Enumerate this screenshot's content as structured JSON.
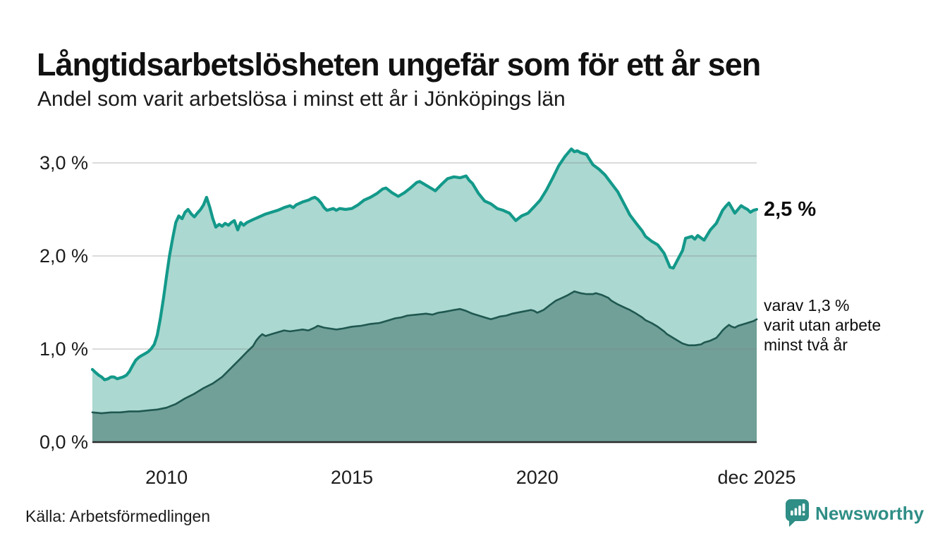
{
  "header": {
    "title": "Långtidsarbetslösheten ungefär som för ett år sen",
    "subtitle": "Andel som varit arbetslösa i minst ett år i Jönköpings län"
  },
  "chart_data": {
    "type": "area",
    "title": "Långtidsarbetslösheten ungefär som för ett år sen",
    "subtitle": "Andel som varit arbetslösa i minst ett år i Jönköpings län",
    "unit": "%",
    "grid": true,
    "legend_position": "end-labels-right",
    "x_axis": {
      "range": [
        2008.0,
        2025.92
      ],
      "ticks": [
        {
          "label": "2010",
          "x": 2010
        },
        {
          "label": "2015",
          "x": 2015
        },
        {
          "label": "2020",
          "x": 2020
        },
        {
          "label": "dec 2025",
          "x": 2025.92
        }
      ]
    },
    "y_axis": {
      "range": [
        0,
        3.2
      ],
      "ticks": [
        {
          "label": "0,0 %",
          "value": 0
        },
        {
          "label": "1,0 %",
          "value": 1
        },
        {
          "label": "2,0 %",
          "value": 2
        },
        {
          "label": "3,0 %",
          "value": 3
        }
      ]
    },
    "series": [
      {
        "name": "Andel arbetslösa minst ett år",
        "end_label": "2,5 %",
        "end_value": 2.5,
        "points": [
          [
            2008.0,
            0.78
          ],
          [
            2008.08,
            0.75
          ],
          [
            2008.17,
            0.72
          ],
          [
            2008.25,
            0.7
          ],
          [
            2008.33,
            0.67
          ],
          [
            2008.42,
            0.68
          ],
          [
            2008.5,
            0.7
          ],
          [
            2008.58,
            0.7
          ],
          [
            2008.67,
            0.68
          ],
          [
            2008.75,
            0.69
          ],
          [
            2008.83,
            0.7
          ],
          [
            2008.92,
            0.72
          ],
          [
            2009.0,
            0.76
          ],
          [
            2009.08,
            0.82
          ],
          [
            2009.17,
            0.88
          ],
          [
            2009.25,
            0.91
          ],
          [
            2009.33,
            0.93
          ],
          [
            2009.42,
            0.95
          ],
          [
            2009.5,
            0.97
          ],
          [
            2009.58,
            1.0
          ],
          [
            2009.67,
            1.05
          ],
          [
            2009.75,
            1.15
          ],
          [
            2009.83,
            1.32
          ],
          [
            2009.92,
            1.55
          ],
          [
            2010.0,
            1.78
          ],
          [
            2010.08,
            2.0
          ],
          [
            2010.17,
            2.2
          ],
          [
            2010.25,
            2.36
          ],
          [
            2010.33,
            2.43
          ],
          [
            2010.42,
            2.4
          ],
          [
            2010.5,
            2.47
          ],
          [
            2010.58,
            2.5
          ],
          [
            2010.67,
            2.45
          ],
          [
            2010.75,
            2.42
          ],
          [
            2010.83,
            2.46
          ],
          [
            2010.92,
            2.5
          ],
          [
            2011.0,
            2.55
          ],
          [
            2011.08,
            2.63
          ],
          [
            2011.17,
            2.52
          ],
          [
            2011.25,
            2.4
          ],
          [
            2011.33,
            2.31
          ],
          [
            2011.42,
            2.34
          ],
          [
            2011.5,
            2.32
          ],
          [
            2011.58,
            2.35
          ],
          [
            2011.67,
            2.33
          ],
          [
            2011.75,
            2.36
          ],
          [
            2011.83,
            2.38
          ],
          [
            2011.92,
            2.28
          ],
          [
            2012.0,
            2.36
          ],
          [
            2012.08,
            2.33
          ],
          [
            2012.17,
            2.36
          ],
          [
            2012.33,
            2.39
          ],
          [
            2012.5,
            2.42
          ],
          [
            2012.67,
            2.45
          ],
          [
            2012.83,
            2.47
          ],
          [
            2013.0,
            2.49
          ],
          [
            2013.17,
            2.52
          ],
          [
            2013.33,
            2.54
          ],
          [
            2013.42,
            2.52
          ],
          [
            2013.5,
            2.55
          ],
          [
            2013.67,
            2.58
          ],
          [
            2013.83,
            2.6
          ],
          [
            2013.92,
            2.62
          ],
          [
            2014.0,
            2.63
          ],
          [
            2014.08,
            2.61
          ],
          [
            2014.17,
            2.57
          ],
          [
            2014.25,
            2.52
          ],
          [
            2014.33,
            2.49
          ],
          [
            2014.5,
            2.51
          ],
          [
            2014.58,
            2.49
          ],
          [
            2014.67,
            2.51
          ],
          [
            2014.83,
            2.5
          ],
          [
            2015.0,
            2.51
          ],
          [
            2015.17,
            2.55
          ],
          [
            2015.33,
            2.6
          ],
          [
            2015.5,
            2.63
          ],
          [
            2015.67,
            2.67
          ],
          [
            2015.83,
            2.72
          ],
          [
            2015.92,
            2.73
          ],
          [
            2016.08,
            2.68
          ],
          [
            2016.25,
            2.64
          ],
          [
            2016.42,
            2.68
          ],
          [
            2016.58,
            2.73
          ],
          [
            2016.75,
            2.79
          ],
          [
            2016.83,
            2.8
          ],
          [
            2017.0,
            2.76
          ],
          [
            2017.17,
            2.72
          ],
          [
            2017.25,
            2.7
          ],
          [
            2017.42,
            2.77
          ],
          [
            2017.58,
            2.83
          ],
          [
            2017.75,
            2.85
          ],
          [
            2017.92,
            2.84
          ],
          [
            2018.08,
            2.86
          ],
          [
            2018.17,
            2.81
          ],
          [
            2018.25,
            2.78
          ],
          [
            2018.42,
            2.67
          ],
          [
            2018.58,
            2.59
          ],
          [
            2018.75,
            2.56
          ],
          [
            2018.92,
            2.51
          ],
          [
            2019.08,
            2.49
          ],
          [
            2019.25,
            2.46
          ],
          [
            2019.42,
            2.38
          ],
          [
            2019.58,
            2.43
          ],
          [
            2019.75,
            2.46
          ],
          [
            2019.92,
            2.53
          ],
          [
            2020.08,
            2.6
          ],
          [
            2020.25,
            2.71
          ],
          [
            2020.42,
            2.84
          ],
          [
            2020.58,
            2.97
          ],
          [
            2020.75,
            3.07
          ],
          [
            2020.92,
            3.15
          ],
          [
            2021.0,
            3.12
          ],
          [
            2021.08,
            3.13
          ],
          [
            2021.17,
            3.11
          ],
          [
            2021.33,
            3.09
          ],
          [
            2021.5,
            2.98
          ],
          [
            2021.67,
            2.93
          ],
          [
            2021.83,
            2.87
          ],
          [
            2022.0,
            2.78
          ],
          [
            2022.17,
            2.69
          ],
          [
            2022.33,
            2.57
          ],
          [
            2022.5,
            2.44
          ],
          [
            2022.67,
            2.35
          ],
          [
            2022.83,
            2.27
          ],
          [
            2022.92,
            2.21
          ],
          [
            2023.08,
            2.16
          ],
          [
            2023.25,
            2.12
          ],
          [
            2023.42,
            2.03
          ],
          [
            2023.58,
            1.88
          ],
          [
            2023.67,
            1.87
          ],
          [
            2023.75,
            1.93
          ],
          [
            2023.92,
            2.06
          ],
          [
            2024.0,
            2.19
          ],
          [
            2024.17,
            2.21
          ],
          [
            2024.25,
            2.18
          ],
          [
            2024.33,
            2.22
          ],
          [
            2024.5,
            2.17
          ],
          [
            2024.67,
            2.28
          ],
          [
            2024.83,
            2.35
          ],
          [
            2025.0,
            2.49
          ],
          [
            2025.08,
            2.53
          ],
          [
            2025.17,
            2.57
          ],
          [
            2025.33,
            2.46
          ],
          [
            2025.5,
            2.54
          ],
          [
            2025.58,
            2.52
          ],
          [
            2025.67,
            2.5
          ],
          [
            2025.75,
            2.47
          ],
          [
            2025.83,
            2.49
          ],
          [
            2025.92,
            2.5
          ]
        ]
      },
      {
        "name": "varav utan arbete minst två år",
        "end_label": "varav 1,3 %\nvarit utan arbete\nminst två år",
        "end_value": 1.3,
        "points": [
          [
            2008.0,
            0.32
          ],
          [
            2008.25,
            0.31
          ],
          [
            2008.5,
            0.32
          ],
          [
            2008.75,
            0.32
          ],
          [
            2009.0,
            0.33
          ],
          [
            2009.25,
            0.33
          ],
          [
            2009.5,
            0.34
          ],
          [
            2009.75,
            0.35
          ],
          [
            2010.0,
            0.37
          ],
          [
            2010.25,
            0.41
          ],
          [
            2010.5,
            0.47
          ],
          [
            2010.75,
            0.52
          ],
          [
            2011.0,
            0.58
          ],
          [
            2011.25,
            0.63
          ],
          [
            2011.5,
            0.7
          ],
          [
            2011.75,
            0.8
          ],
          [
            2012.0,
            0.9
          ],
          [
            2012.17,
            0.97
          ],
          [
            2012.33,
            1.03
          ],
          [
            2012.42,
            1.09
          ],
          [
            2012.5,
            1.13
          ],
          [
            2012.58,
            1.16
          ],
          [
            2012.67,
            1.14
          ],
          [
            2012.83,
            1.16
          ],
          [
            2013.0,
            1.18
          ],
          [
            2013.17,
            1.2
          ],
          [
            2013.33,
            1.19
          ],
          [
            2013.5,
            1.2
          ],
          [
            2013.67,
            1.21
          ],
          [
            2013.83,
            1.2
          ],
          [
            2014.0,
            1.23
          ],
          [
            2014.08,
            1.25
          ],
          [
            2014.25,
            1.23
          ],
          [
            2014.42,
            1.22
          ],
          [
            2014.58,
            1.21
          ],
          [
            2014.75,
            1.22
          ],
          [
            2015.0,
            1.24
          ],
          [
            2015.25,
            1.25
          ],
          [
            2015.5,
            1.27
          ],
          [
            2015.75,
            1.28
          ],
          [
            2016.0,
            1.31
          ],
          [
            2016.17,
            1.33
          ],
          [
            2016.33,
            1.34
          ],
          [
            2016.5,
            1.36
          ],
          [
            2016.75,
            1.37
          ],
          [
            2017.0,
            1.38
          ],
          [
            2017.17,
            1.37
          ],
          [
            2017.33,
            1.39
          ],
          [
            2017.5,
            1.4
          ],
          [
            2017.75,
            1.42
          ],
          [
            2017.92,
            1.43
          ],
          [
            2018.08,
            1.41
          ],
          [
            2018.25,
            1.38
          ],
          [
            2018.42,
            1.36
          ],
          [
            2018.58,
            1.34
          ],
          [
            2018.75,
            1.32
          ],
          [
            2018.92,
            1.34
          ],
          [
            2019.0,
            1.35
          ],
          [
            2019.17,
            1.36
          ],
          [
            2019.33,
            1.38
          ],
          [
            2019.58,
            1.4
          ],
          [
            2019.83,
            1.42
          ],
          [
            2019.92,
            1.41
          ],
          [
            2020.0,
            1.39
          ],
          [
            2020.17,
            1.42
          ],
          [
            2020.33,
            1.47
          ],
          [
            2020.5,
            1.52
          ],
          [
            2020.67,
            1.55
          ],
          [
            2020.83,
            1.58
          ],
          [
            2021.0,
            1.62
          ],
          [
            2021.17,
            1.6
          ],
          [
            2021.33,
            1.59
          ],
          [
            2021.5,
            1.59
          ],
          [
            2021.58,
            1.6
          ],
          [
            2021.75,
            1.58
          ],
          [
            2021.92,
            1.55
          ],
          [
            2022.0,
            1.52
          ],
          [
            2022.17,
            1.48
          ],
          [
            2022.33,
            1.45
          ],
          [
            2022.5,
            1.42
          ],
          [
            2022.67,
            1.38
          ],
          [
            2022.83,
            1.34
          ],
          [
            2022.92,
            1.31
          ],
          [
            2023.08,
            1.28
          ],
          [
            2023.25,
            1.24
          ],
          [
            2023.42,
            1.19
          ],
          [
            2023.5,
            1.16
          ],
          [
            2023.67,
            1.12
          ],
          [
            2023.83,
            1.08
          ],
          [
            2023.92,
            1.06
          ],
          [
            2024.08,
            1.04
          ],
          [
            2024.25,
            1.04
          ],
          [
            2024.42,
            1.05
          ],
          [
            2024.5,
            1.07
          ],
          [
            2024.67,
            1.09
          ],
          [
            2024.83,
            1.12
          ],
          [
            2024.92,
            1.16
          ],
          [
            2025.0,
            1.2
          ],
          [
            2025.08,
            1.23
          ],
          [
            2025.17,
            1.26
          ],
          [
            2025.25,
            1.24
          ],
          [
            2025.33,
            1.23
          ],
          [
            2025.42,
            1.25
          ],
          [
            2025.5,
            1.26
          ],
          [
            2025.67,
            1.28
          ],
          [
            2025.83,
            1.3
          ],
          [
            2025.92,
            1.32
          ]
        ]
      }
    ]
  },
  "footer": {
    "source": "Källa: Arbetsförmedlingen",
    "brand": "Newsworthy"
  },
  "colors": {
    "teal_stroke": "#13998a",
    "light_fill": "#abd8d0",
    "dark_fill": "#70a098",
    "dark_stroke": "#1f5850",
    "grid": "#828282",
    "axis": "#2b2b2b",
    "logo_teal": "#2f8e86"
  }
}
